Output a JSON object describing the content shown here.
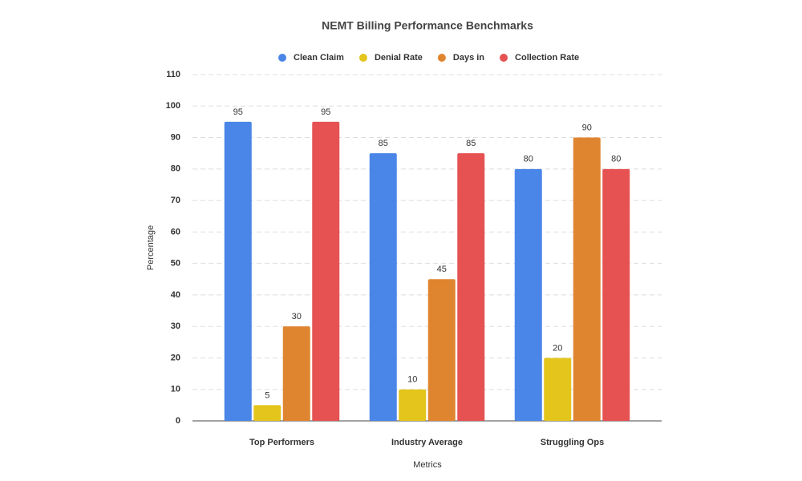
{
  "chart_data": {
    "type": "bar",
    "title": "NEMT Billing Performance Benchmarks",
    "x_label": "Metrics",
    "y_label": "Percentage",
    "categories": [
      "Top Performers",
      "Industry Average",
      "Struggling Ops"
    ],
    "series": [
      {
        "name": "Clean Claim",
        "color": "#4a86e8",
        "values": [
          95,
          85,
          80
        ]
      },
      {
        "name": "Denial Rate",
        "color": "#e3c51c",
        "values": [
          5,
          10,
          20
        ]
      },
      {
        "name": "Days in",
        "color": "#e0852f",
        "values": [
          30,
          45,
          90
        ]
      },
      {
        "name": "Collection Rate",
        "color": "#e65252",
        "values": [
          95,
          85,
          80
        ]
      }
    ],
    "ylim": [
      0,
      110
    ],
    "yticks": [
      0,
      10,
      20,
      30,
      40,
      50,
      60,
      70,
      80,
      90,
      100,
      110
    ],
    "grid": true,
    "legend": "top"
  }
}
